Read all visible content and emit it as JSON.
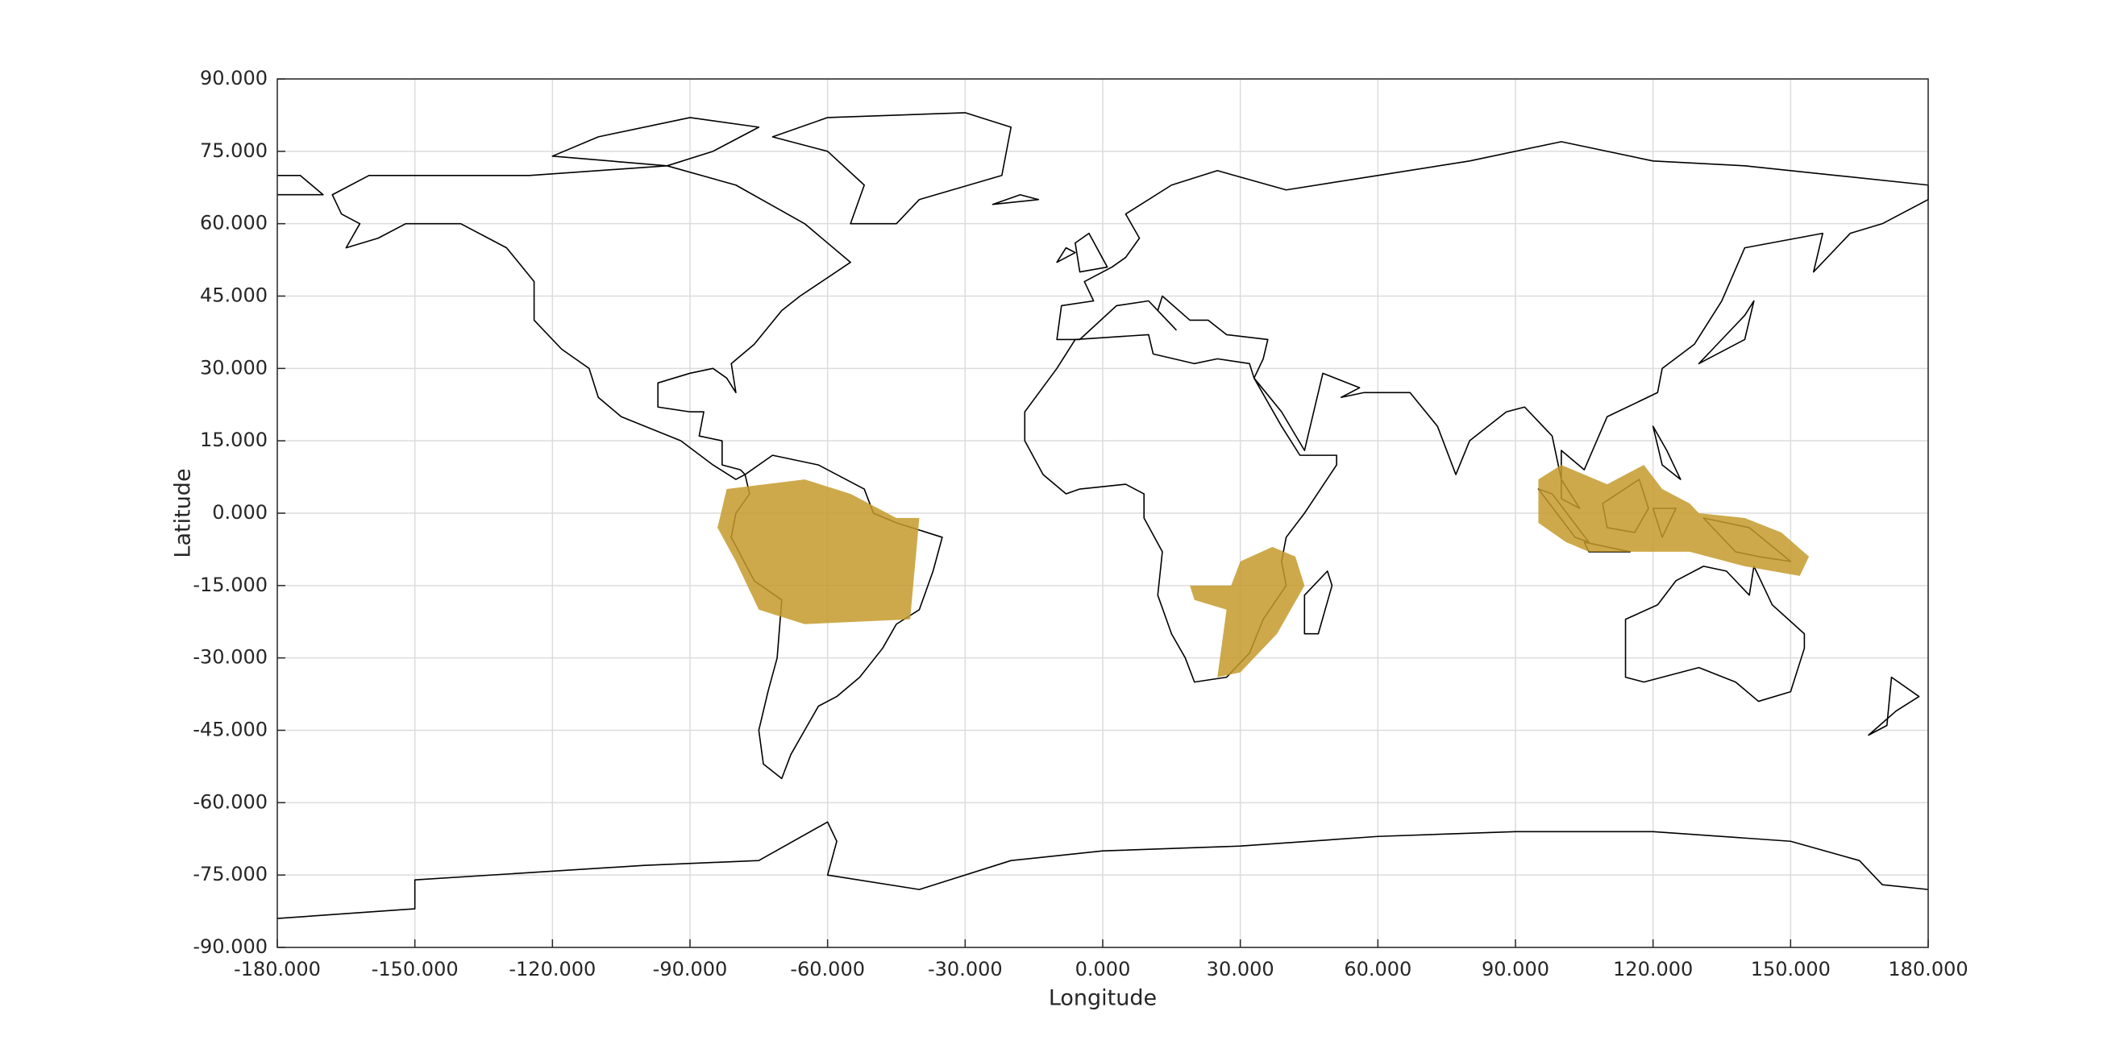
{
  "chart_data": {
    "type": "map",
    "xlabel": "Longitude",
    "ylabel": "Latitude",
    "xlim": [
      -180,
      180
    ],
    "ylim": [
      -90,
      90
    ],
    "xticks": [
      {
        "value": -180,
        "label": "-180.000"
      },
      {
        "value": -150,
        "label": "-150.000"
      },
      {
        "value": -120,
        "label": "-120.000"
      },
      {
        "value": -90,
        "label": "-90.000"
      },
      {
        "value": -60,
        "label": "-60.000"
      },
      {
        "value": -30,
        "label": "-30.000"
      },
      {
        "value": 0,
        "label": "0.000"
      },
      {
        "value": 30,
        "label": "30.000"
      },
      {
        "value": 60,
        "label": "60.000"
      },
      {
        "value": 90,
        "label": "90.000"
      },
      {
        "value": 120,
        "label": "120.000"
      },
      {
        "value": 150,
        "label": "150.000"
      },
      {
        "value": 180,
        "label": "180.000"
      }
    ],
    "yticks": [
      {
        "value": -90,
        "label": "-90.000"
      },
      {
        "value": -75,
        "label": "-75.000"
      },
      {
        "value": -60,
        "label": "-60.000"
      },
      {
        "value": -45,
        "label": "-45.000"
      },
      {
        "value": -30,
        "label": "-30.000"
      },
      {
        "value": -15,
        "label": "-15.000"
      },
      {
        "value": 0,
        "label": "0.000"
      },
      {
        "value": 15,
        "label": "15.000"
      },
      {
        "value": 30,
        "label": "30.000"
      },
      {
        "value": 45,
        "label": "45.000"
      },
      {
        "value": 60,
        "label": "60.000"
      },
      {
        "value": 75,
        "label": "75.000"
      },
      {
        "value": 90,
        "label": "90.000"
      }
    ],
    "grid": true,
    "color": "#c49a2c",
    "regions": [
      {
        "x": [
          -82,
          -65,
          -55,
          -45,
          -40,
          -42,
          -65,
          -75,
          -80,
          -84
        ],
        "values": [
          5,
          7,
          4,
          -1,
          -1,
          -22,
          -23,
          -20,
          -10,
          -3
        ]
      },
      {
        "x": [
          30,
          37,
          42,
          44,
          38,
          30,
          25,
          27,
          20,
          19,
          28
        ],
        "values": [
          -10,
          -7,
          -9,
          -15,
          -25,
          -33,
          -34,
          -20,
          -18,
          -15,
          -15
        ]
      },
      {
        "x": [
          95,
          95,
          100,
          110,
          118,
          122,
          128,
          130,
          140,
          148,
          154,
          152,
          140,
          128,
          116,
          106,
          101
        ],
        "values": [
          -2,
          7,
          10,
          6,
          10,
          5,
          2,
          0,
          -1,
          -4,
          -9,
          -13,
          -11,
          -8,
          -8,
          -8,
          -6
        ]
      }
    ]
  }
}
